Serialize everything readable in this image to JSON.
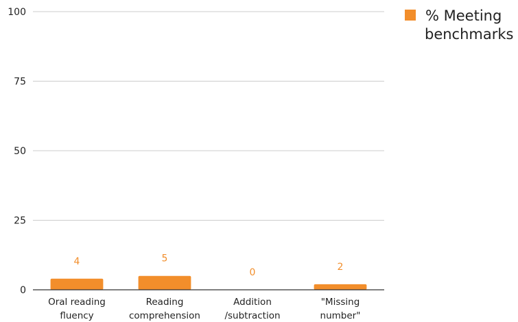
{
  "chart_data": {
    "type": "bar",
    "categories": [
      [
        "Oral reading",
        "fluency"
      ],
      [
        "Reading",
        "comprehension"
      ],
      [
        "Addition",
        "/subtraction"
      ],
      [
        "\"Missing",
        "number\""
      ]
    ],
    "series": [
      {
        "name": "% Meeting benchmarks",
        "values": [
          4,
          5,
          0,
          2
        ]
      }
    ],
    "data_labels": [
      "4",
      "5",
      "0",
      "2"
    ],
    "y_ticks": [
      0,
      25,
      50,
      75,
      100
    ],
    "ylim": [
      0,
      100
    ],
    "grid": true,
    "legend_position": "top-right",
    "legend_lines": [
      "% Meeting",
      "benchmarks"
    ],
    "colors": {
      "bar": "#F28E2B",
      "gridline": "#cccccc",
      "baseline": "#333333",
      "label": "#222222"
    }
  }
}
